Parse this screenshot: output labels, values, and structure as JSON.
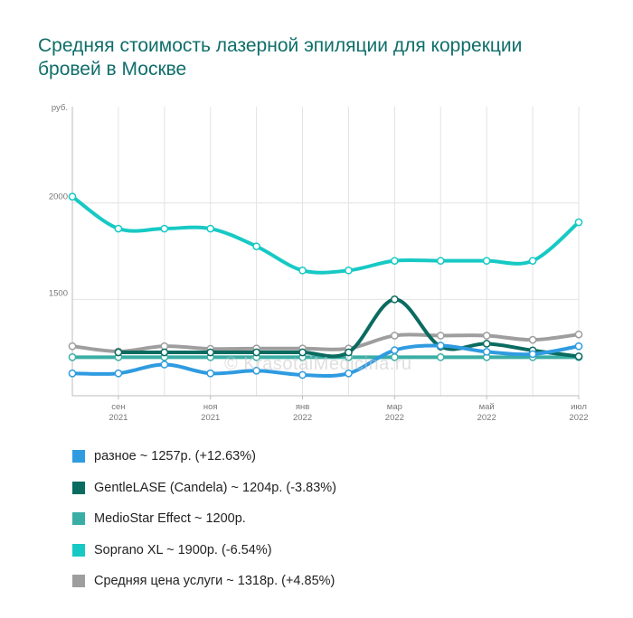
{
  "title": "Средняя стоимость лазерной эпиляции для коррекции бровей в Москве",
  "watermark": "© KrasotaiMedicina.ru",
  "chart_data": {
    "type": "line",
    "title": "Средняя стоимость лазерной эпиляции для коррекции бровей в Москве",
    "ylabel": "руб.",
    "ylim": [
      1000,
      2500
    ],
    "yticks": [
      1500,
      2000
    ],
    "grid": true,
    "legend_position": "bottom",
    "x_labels": [
      {
        "month": "сен",
        "year": "2021",
        "index": 1
      },
      {
        "month": "ноя",
        "year": "2021",
        "index": 3
      },
      {
        "month": "янв",
        "year": "2022",
        "index": 5
      },
      {
        "month": "мар",
        "year": "2022",
        "index": 7
      },
      {
        "month": "май",
        "year": "2022",
        "index": 9
      },
      {
        "month": "июл",
        "year": "2022",
        "index": 11
      }
    ],
    "series": [
      {
        "name": "разное",
        "color": "#2f9be0",
        "legend": "разное ~ 1257р. (+12.63%)",
        "values": [
          1116,
          1116,
          1162,
          1116,
          1130,
          1108,
          1116,
          1236,
          1260,
          1228,
          1216,
          1257
        ]
      },
      {
        "name": "GentleLASE (Candela)",
        "color": "#0a6b60",
        "legend": "GentleLASE (Candela) ~ 1204р. (-3.83%)",
        "values": [
          null,
          1225,
          1225,
          1225,
          1225,
          1225,
          1225,
          1500,
          1255,
          1270,
          1235,
          1204
        ]
      },
      {
        "name": "MedioStar Effect",
        "color": "#3aaea4",
        "legend": "MedioStar Effect ~ 1200р.",
        "values": [
          1200,
          1200,
          1200,
          1200,
          1200,
          1200,
          1200,
          1200,
          1200,
          1200,
          1200,
          1200
        ]
      },
      {
        "name": "Soprano XL",
        "color": "#17c9c4",
        "legend": "Soprano XL ~ 1900р. (-6.54%)",
        "values": [
          2033,
          1867,
          1867,
          1867,
          1775,
          1650,
          1650,
          1700,
          1700,
          1700,
          1700,
          1900
        ]
      },
      {
        "name": "Средняя цена услуги",
        "color": "#9e9e9e",
        "legend": "Средняя цена услуги ~ 1318р. (+4.85%)",
        "values": [
          1257,
          1230,
          1257,
          1243,
          1245,
          1245,
          1245,
          1312,
          1312,
          1312,
          1290,
          1318
        ]
      }
    ]
  }
}
